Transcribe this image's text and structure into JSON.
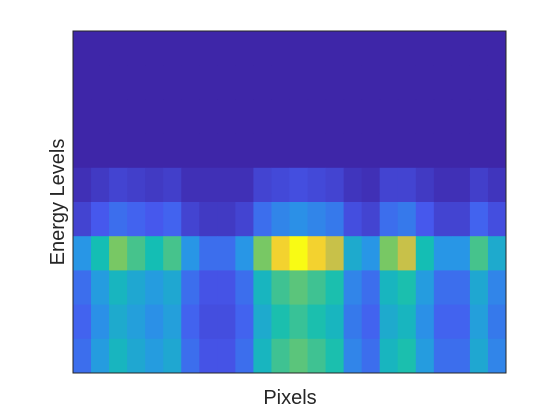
{
  "chart_data": {
    "type": "heatmap",
    "xlabel": "Pixels",
    "ylabel": "Energy Levels",
    "colormap": "parula",
    "z": [
      [
        0,
        0,
        0,
        0,
        0,
        0,
        0,
        0,
        0,
        0,
        0,
        0,
        0,
        0,
        0,
        0,
        0,
        0,
        0,
        0,
        0,
        0,
        0,
        0
      ],
      [
        0,
        0,
        0,
        0,
        0,
        0,
        0,
        0,
        0,
        0,
        0,
        0,
        0,
        0,
        0,
        0,
        0,
        0,
        0,
        0,
        0,
        0,
        0,
        0
      ],
      [
        0,
        0,
        0,
        0,
        0,
        0,
        0,
        0,
        0,
        0,
        0,
        0,
        0,
        0,
        0,
        0,
        0,
        0,
        0,
        0,
        0,
        0,
        0,
        0
      ],
      [
        0,
        0,
        0,
        0,
        0,
        0,
        0,
        0,
        0,
        0,
        0,
        0,
        0,
        0,
        0,
        0,
        0,
        0,
        0,
        0,
        0,
        0,
        0,
        0
      ],
      [
        0.02,
        0.04,
        0.06,
        0.05,
        0.04,
        0.05,
        0.02,
        0.02,
        0.02,
        0.02,
        0.06,
        0.07,
        0.08,
        0.07,
        0.06,
        0.03,
        0.02,
        0.06,
        0.06,
        0.04,
        0.02,
        0.02,
        0.05,
        0.03
      ],
      [
        0.06,
        0.1,
        0.14,
        0.12,
        0.1,
        0.12,
        0.06,
        0.04,
        0.04,
        0.06,
        0.14,
        0.18,
        0.2,
        0.18,
        0.16,
        0.08,
        0.06,
        0.14,
        0.16,
        0.1,
        0.06,
        0.06,
        0.12,
        0.08
      ],
      [
        0.21,
        0.35,
        0.49,
        0.42,
        0.35,
        0.42,
        0.21,
        0.14,
        0.14,
        0.21,
        0.49,
        0.63,
        0.7,
        0.63,
        0.56,
        0.28,
        0.21,
        0.49,
        0.56,
        0.35,
        0.21,
        0.21,
        0.42,
        0.28
      ],
      [
        0.14,
        0.23,
        0.32,
        0.27,
        0.23,
        0.27,
        0.14,
        0.09,
        0.09,
        0.14,
        0.32,
        0.41,
        0.45,
        0.41,
        0.36,
        0.18,
        0.14,
        0.32,
        0.36,
        0.23,
        0.14,
        0.14,
        0.27,
        0.18
      ],
      [
        0.12,
        0.2,
        0.28,
        0.24,
        0.2,
        0.24,
        0.12,
        0.08,
        0.08,
        0.12,
        0.28,
        0.36,
        0.4,
        0.36,
        0.32,
        0.16,
        0.12,
        0.28,
        0.32,
        0.2,
        0.12,
        0.12,
        0.24,
        0.16
      ],
      [
        0.14,
        0.23,
        0.32,
        0.27,
        0.23,
        0.27,
        0.14,
        0.09,
        0.09,
        0.14,
        0.32,
        0.41,
        0.45,
        0.41,
        0.36,
        0.18,
        0.14,
        0.32,
        0.36,
        0.23,
        0.14,
        0.14,
        0.27,
        0.18
      ]
    ]
  }
}
